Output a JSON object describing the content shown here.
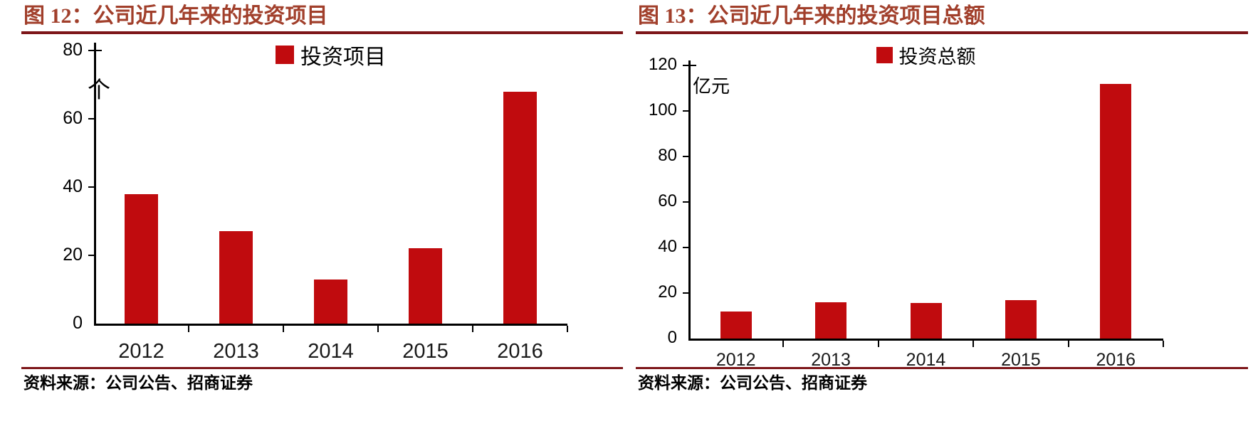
{
  "colors": {
    "bar": "#c00b0e",
    "title_text": "#a13f2b",
    "rule": "#7d1619",
    "axis": "#000000"
  },
  "chart_data": [
    {
      "type": "bar",
      "figure_no": "图 12",
      "title": "图 12：公司近几年来的投资项目",
      "unit_label": "个",
      "legend": "投资项目",
      "legend_position": "top-center",
      "categories": [
        "2012",
        "2013",
        "2014",
        "2015",
        "2016"
      ],
      "values": [
        38,
        27,
        13,
        22,
        68
      ],
      "ylim": [
        0,
        80
      ],
      "ytick_step": 20,
      "yticks": [
        0,
        20,
        40,
        60,
        80
      ],
      "grid": false,
      "bar_color": "#c00b0e",
      "source": "资料来源：公司公告、招商证券"
    },
    {
      "type": "bar",
      "figure_no": "图 13",
      "title": "图 13：公司近几年来的投资项目总额",
      "unit_label": "亿元",
      "legend": "投资总额",
      "legend_position": "top-center",
      "categories": [
        "2012",
        "2013",
        "2014",
        "2015",
        "2016"
      ],
      "values": [
        12,
        16,
        15.5,
        17,
        112
      ],
      "ylim": [
        0,
        120
      ],
      "ytick_step": 20,
      "yticks": [
        0,
        20,
        40,
        60,
        80,
        100,
        120
      ],
      "grid": false,
      "bar_color": "#c00b0e",
      "source": "资料来源：公司公告、招商证券"
    }
  ]
}
